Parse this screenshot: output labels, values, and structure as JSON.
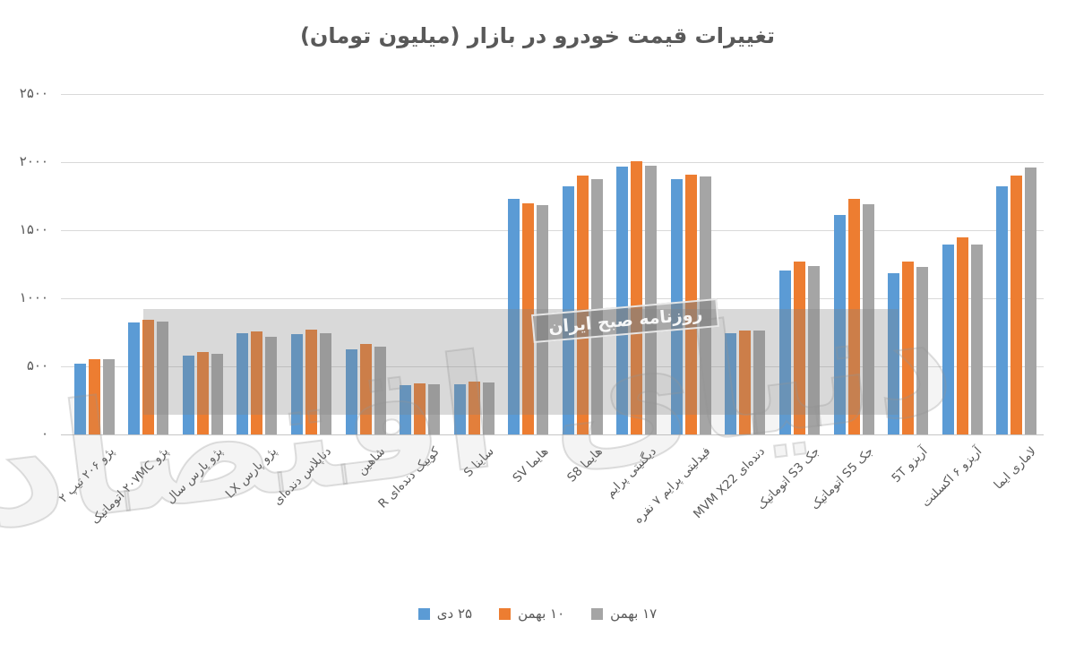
{
  "title": "تغییرات قیمت خودرو در بازار (میلیون تومان)",
  "watermark": {
    "badge_text": "روزنامه صبح ایران",
    "ghost_text": "دنیای اقتصاد"
  },
  "chart_data": {
    "type": "bar",
    "title": "تغییرات قیمت خودرو در بازار (میلیون تومان)",
    "xlabel": "",
    "ylabel": "",
    "ylim": [
      0,
      2500
    ],
    "y_ticks": [
      "۰",
      "۵۰۰",
      "۱۰۰۰",
      "۱۵۰۰",
      "۲۰۰۰",
      "۲۵۰۰"
    ],
    "grid": true,
    "legend_position": "bottom",
    "categories": [
      "پژو ۲۰۶ تیپ ۲",
      "پژو ۲۰۷MC اتوماتیک",
      "پژو پارس سال",
      "پژو پارس LX",
      "دناپلاس دنده‌ای",
      "شاهین",
      "کوییک دنده‌ای R",
      "ساینا S",
      "هایما SV",
      "هایما S8",
      "دیگنیتی پرایم",
      "فیدلیتی پرایم ۷ نفره",
      "MVM X22 دنده‌ای",
      "جک S3 اتوماتیک",
      "جک S5 اتوماتیک",
      "آریزو 5T",
      "آریزو ۶ اکسلنت",
      "لاماری ایما"
    ],
    "series": [
      {
        "name": "۲۵ دی",
        "color": "#5B9BD5",
        "values": [
          520,
          820,
          580,
          745,
          735,
          625,
          360,
          370,
          1730,
          1825,
          1970,
          1875,
          745,
          1205,
          1610,
          1185,
          1395,
          1820
        ]
      },
      {
        "name": "۱۰ بهمن",
        "color": "#ED7D31",
        "values": [
          555,
          840,
          605,
          755,
          770,
          665,
          375,
          385,
          1695,
          1900,
          2005,
          1905,
          765,
          1270,
          1730,
          1270,
          1445,
          1900
        ]
      },
      {
        "name": "۱۷ بهمن",
        "color": "#A5A5A5",
        "values": [
          550,
          830,
          590,
          715,
          745,
          645,
          370,
          380,
          1685,
          1875,
          1975,
          1895,
          760,
          1240,
          1690,
          1230,
          1395,
          1960
        ]
      }
    ]
  }
}
